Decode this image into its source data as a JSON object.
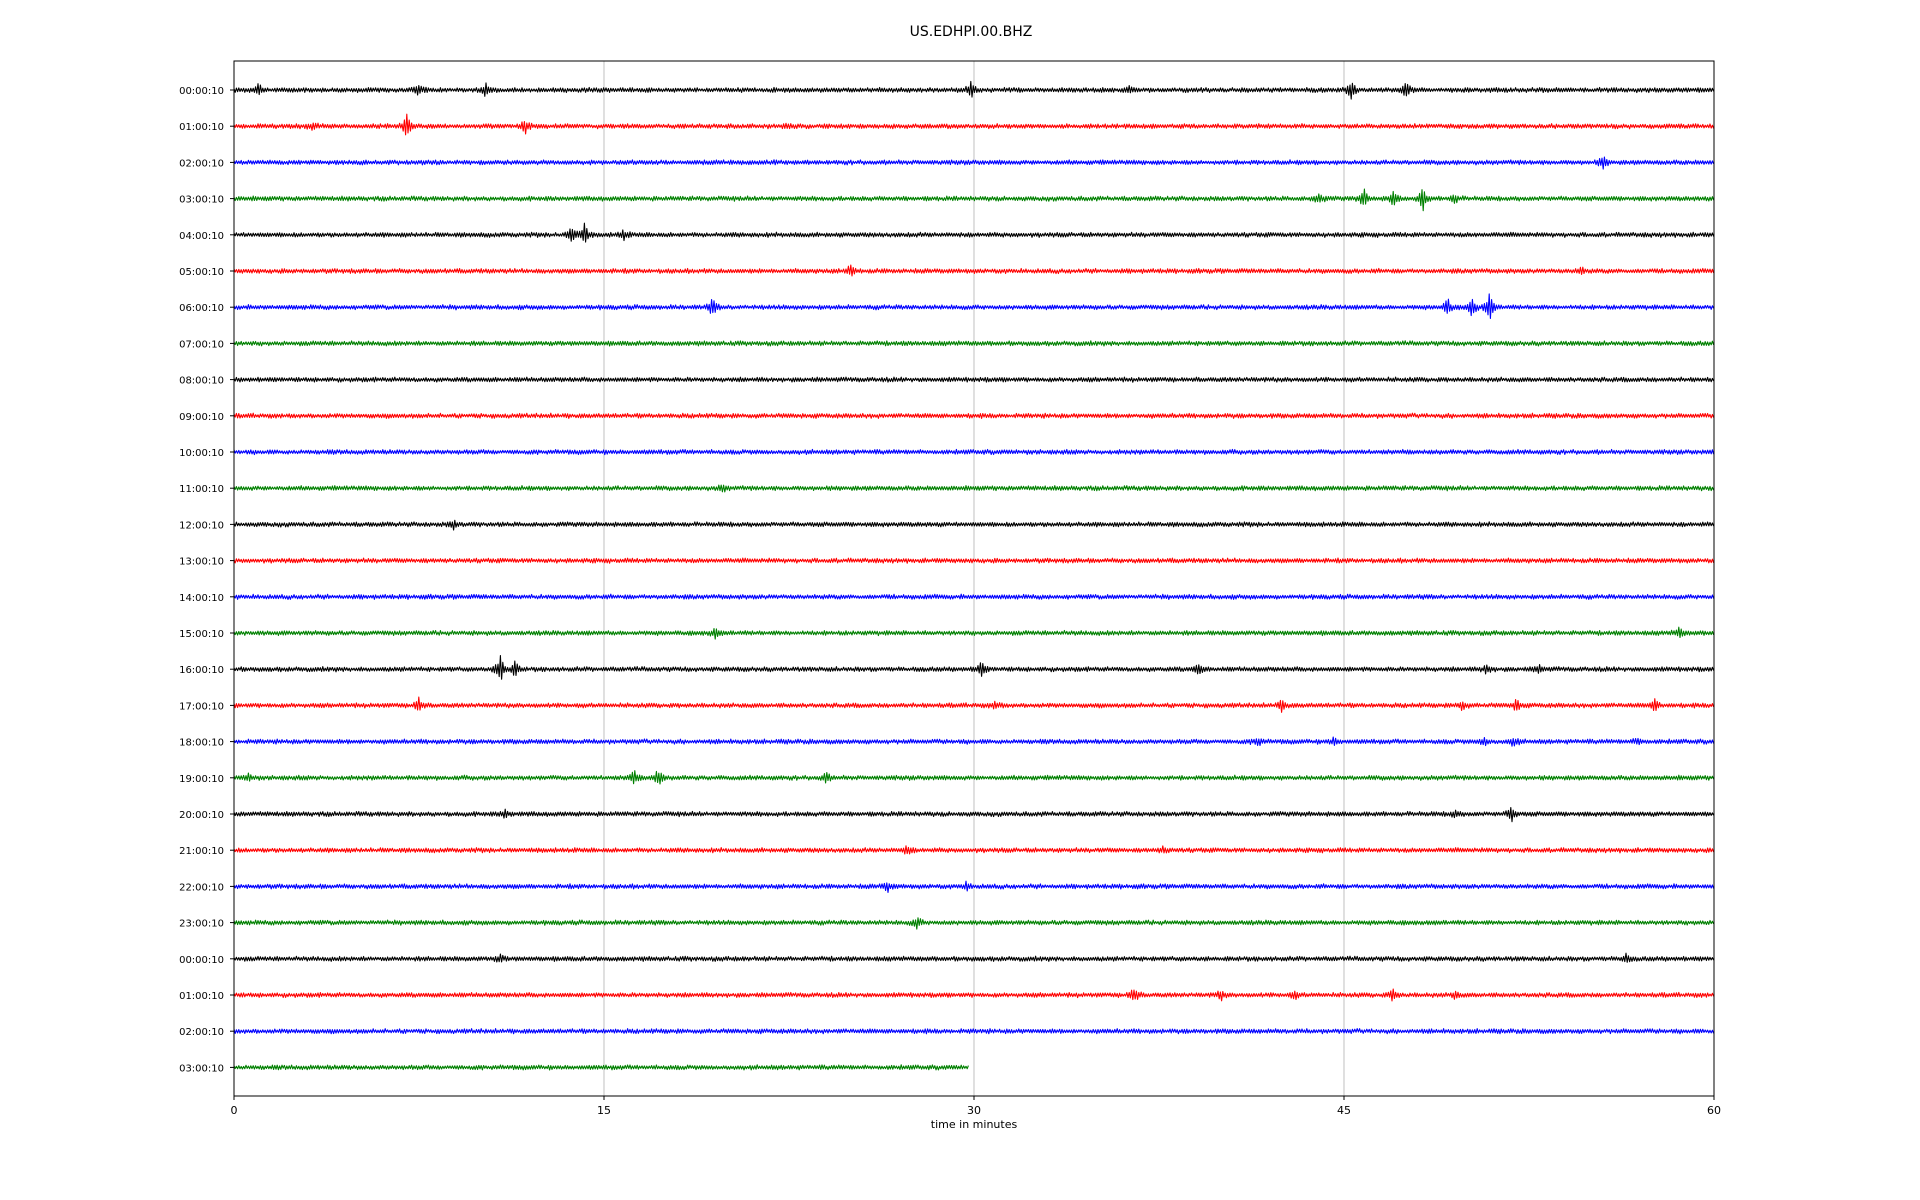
{
  "chart_data": {
    "type": "line",
    "title": "US.EDHPI.00.BHZ",
    "xlabel": "time in minutes",
    "ylabel": "",
    "xlim": [
      0,
      60
    ],
    "x_ticks": [
      0,
      15,
      30,
      45,
      60
    ],
    "x_tick_labels": [
      "0",
      "15",
      "30",
      "45",
      "60"
    ],
    "grid": "vertical lines at x ticks",
    "trace_colors": [
      "#000000",
      "#ff0000",
      "#0000ff",
      "#008000"
    ],
    "rows": [
      {
        "label": "00:00:10",
        "color": "#000000",
        "end_minute": 60
      },
      {
        "label": "01:00:10",
        "color": "#ff0000",
        "end_minute": 60
      },
      {
        "label": "02:00:10",
        "color": "#0000ff",
        "end_minute": 60
      },
      {
        "label": "03:00:10",
        "color": "#008000",
        "end_minute": 60
      },
      {
        "label": "04:00:10",
        "color": "#000000",
        "end_minute": 60
      },
      {
        "label": "05:00:10",
        "color": "#ff0000",
        "end_minute": 60
      },
      {
        "label": "06:00:10",
        "color": "#0000ff",
        "end_minute": 60
      },
      {
        "label": "07:00:10",
        "color": "#008000",
        "end_minute": 60
      },
      {
        "label": "08:00:10",
        "color": "#000000",
        "end_minute": 60
      },
      {
        "label": "09:00:10",
        "color": "#ff0000",
        "end_minute": 60
      },
      {
        "label": "10:00:10",
        "color": "#0000ff",
        "end_minute": 60
      },
      {
        "label": "11:00:10",
        "color": "#008000",
        "end_minute": 60
      },
      {
        "label": "12:00:10",
        "color": "#000000",
        "end_minute": 60
      },
      {
        "label": "13:00:10",
        "color": "#ff0000",
        "end_minute": 60
      },
      {
        "label": "14:00:10",
        "color": "#0000ff",
        "end_minute": 60
      },
      {
        "label": "15:00:10",
        "color": "#008000",
        "end_minute": 60
      },
      {
        "label": "16:00:10",
        "color": "#000000",
        "end_minute": 60
      },
      {
        "label": "17:00:10",
        "color": "#ff0000",
        "end_minute": 60
      },
      {
        "label": "18:00:10",
        "color": "#0000ff",
        "end_minute": 60
      },
      {
        "label": "19:00:10",
        "color": "#008000",
        "end_minute": 60
      },
      {
        "label": "20:00:10",
        "color": "#000000",
        "end_minute": 60
      },
      {
        "label": "21:00:10",
        "color": "#ff0000",
        "end_minute": 60
      },
      {
        "label": "22:00:10",
        "color": "#0000ff",
        "end_minute": 60
      },
      {
        "label": "23:00:10",
        "color": "#008000",
        "end_minute": 60
      },
      {
        "label": "00:00:10",
        "color": "#000000",
        "end_minute": 60
      },
      {
        "label": "01:00:10",
        "color": "#ff0000",
        "end_minute": 60
      },
      {
        "label": "02:00:10",
        "color": "#0000ff",
        "end_minute": 60
      },
      {
        "label": "03:00:10",
        "color": "#008000",
        "end_minute": 29.8
      }
    ],
    "events": [
      {
        "row": 0,
        "minute": 1.0,
        "amp": 0.5
      },
      {
        "row": 0,
        "minute": 7.5,
        "amp": 0.5
      },
      {
        "row": 0,
        "minute": 10.2,
        "amp": 0.5
      },
      {
        "row": 0,
        "minute": 29.9,
        "amp": 0.8
      },
      {
        "row": 0,
        "minute": 36.3,
        "amp": 0.4
      },
      {
        "row": 0,
        "minute": 45.3,
        "amp": 0.7
      },
      {
        "row": 0,
        "minute": 47.5,
        "amp": 0.7
      },
      {
        "row": 1,
        "minute": 3.2,
        "amp": 0.3
      },
      {
        "row": 1,
        "minute": 7.0,
        "amp": 0.9
      },
      {
        "row": 1,
        "minute": 11.8,
        "amp": 0.7
      },
      {
        "row": 1,
        "minute": 22.5,
        "amp": 0.2
      },
      {
        "row": 2,
        "minute": 55.5,
        "amp": 0.5
      },
      {
        "row": 3,
        "minute": 44.0,
        "amp": 0.6
      },
      {
        "row": 3,
        "minute": 45.8,
        "amp": 0.8
      },
      {
        "row": 3,
        "minute": 47.0,
        "amp": 0.6
      },
      {
        "row": 3,
        "minute": 48.2,
        "amp": 1.0
      },
      {
        "row": 3,
        "minute": 49.5,
        "amp": 0.4
      },
      {
        "row": 4,
        "minute": 13.7,
        "amp": 0.8
      },
      {
        "row": 4,
        "minute": 14.2,
        "amp": 0.9
      },
      {
        "row": 4,
        "minute": 15.8,
        "amp": 0.4
      },
      {
        "row": 5,
        "minute": 25.0,
        "amp": 0.5
      },
      {
        "row": 5,
        "minute": 54.6,
        "amp": 0.3
      },
      {
        "row": 6,
        "minute": 19.4,
        "amp": 0.7
      },
      {
        "row": 6,
        "minute": 49.2,
        "amp": 0.7
      },
      {
        "row": 6,
        "minute": 50.2,
        "amp": 0.8
      },
      {
        "row": 6,
        "minute": 50.9,
        "amp": 1.2
      },
      {
        "row": 11,
        "minute": 19.8,
        "amp": 0.3
      },
      {
        "row": 12,
        "minute": 8.9,
        "amp": 0.3
      },
      {
        "row": 15,
        "minute": 19.5,
        "amp": 0.4
      },
      {
        "row": 15,
        "minute": 58.6,
        "amp": 0.4
      },
      {
        "row": 16,
        "minute": 10.8,
        "amp": 1.3
      },
      {
        "row": 16,
        "minute": 11.4,
        "amp": 0.6
      },
      {
        "row": 16,
        "minute": 30.3,
        "amp": 0.6
      },
      {
        "row": 16,
        "minute": 39.1,
        "amp": 0.4
      },
      {
        "row": 16,
        "minute": 50.8,
        "amp": 0.4
      },
      {
        "row": 16,
        "minute": 52.9,
        "amp": 0.3
      },
      {
        "row": 17,
        "minute": 7.5,
        "amp": 0.6
      },
      {
        "row": 17,
        "minute": 30.9,
        "amp": 0.3
      },
      {
        "row": 17,
        "minute": 42.5,
        "amp": 0.5
      },
      {
        "row": 17,
        "minute": 49.8,
        "amp": 0.4
      },
      {
        "row": 17,
        "minute": 52.0,
        "amp": 0.5
      },
      {
        "row": 17,
        "minute": 57.6,
        "amp": 0.5
      },
      {
        "row": 18,
        "minute": 41.5,
        "amp": 0.4
      },
      {
        "row": 18,
        "minute": 44.6,
        "amp": 0.3
      },
      {
        "row": 18,
        "minute": 50.7,
        "amp": 0.4
      },
      {
        "row": 18,
        "minute": 51.9,
        "amp": 0.4
      },
      {
        "row": 18,
        "minute": 56.9,
        "amp": 0.3
      },
      {
        "row": 19,
        "minute": 0.6,
        "amp": 0.3
      },
      {
        "row": 19,
        "minute": 16.2,
        "amp": 0.6
      },
      {
        "row": 19,
        "minute": 17.2,
        "amp": 0.8
      },
      {
        "row": 19,
        "minute": 24.0,
        "amp": 0.4
      },
      {
        "row": 20,
        "minute": 11.0,
        "amp": 0.3
      },
      {
        "row": 20,
        "minute": 49.5,
        "amp": 0.3
      },
      {
        "row": 20,
        "minute": 51.8,
        "amp": 0.6
      },
      {
        "row": 21,
        "minute": 27.3,
        "amp": 0.4
      },
      {
        "row": 21,
        "minute": 37.7,
        "amp": 0.3
      },
      {
        "row": 22,
        "minute": 26.5,
        "amp": 0.4
      },
      {
        "row": 22,
        "minute": 29.7,
        "amp": 0.3
      },
      {
        "row": 23,
        "minute": 27.7,
        "amp": 0.5
      },
      {
        "row": 24,
        "minute": 10.8,
        "amp": 0.3
      },
      {
        "row": 24,
        "minute": 56.4,
        "amp": 0.4
      },
      {
        "row": 25,
        "minute": 36.5,
        "amp": 0.7
      },
      {
        "row": 25,
        "minute": 40.0,
        "amp": 0.4
      },
      {
        "row": 25,
        "minute": 43.0,
        "amp": 0.3
      },
      {
        "row": 25,
        "minute": 47.0,
        "amp": 0.5
      },
      {
        "row": 25,
        "minute": 49.5,
        "amp": 0.3
      }
    ]
  }
}
